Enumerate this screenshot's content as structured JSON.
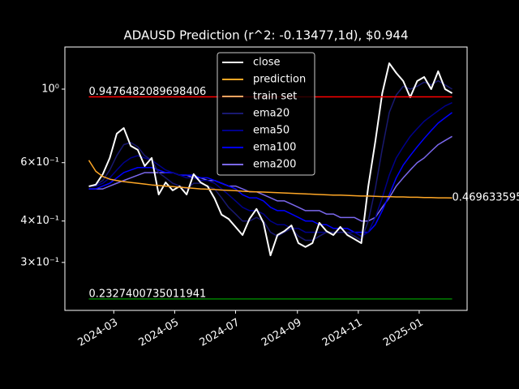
{
  "chart_data": {
    "type": "line",
    "title": "ADAUSD Prediction (r^2: -0.13477,1d), $0.944",
    "log_scale": true,
    "legend": "upper center",
    "xlim": [
      "2024-01-12",
      "2025-02-18"
    ],
    "xticks": [
      {
        "value": "2024-03-01",
        "label": "2024-03"
      },
      {
        "value": "2024-05-01",
        "label": "2024-05"
      },
      {
        "value": "2024-07-01",
        "label": "2024-07"
      },
      {
        "value": "2024-09-01",
        "label": "2024-09"
      },
      {
        "value": "2024-11-01",
        "label": "2024-11"
      },
      {
        "value": "2025-01-01",
        "label": "2025-01"
      }
    ],
    "ylim": [
      0.215,
      1.34
    ],
    "yticks": [
      {
        "value": 0.3,
        "label": "3×10⁻¹"
      },
      {
        "value": 0.4,
        "label": "4×10⁻¹"
      },
      {
        "value": 0.6,
        "label": "6×10⁻¹"
      },
      {
        "value": 1,
        "label": "10⁰"
      }
    ],
    "x": [
      "2024-02-05",
      "2024-02-12",
      "2024-02-19",
      "2024-02-26",
      "2024-03-04",
      "2024-03-11",
      "2024-03-18",
      "2024-03-25",
      "2024-04-01",
      "2024-04-08",
      "2024-04-15",
      "2024-04-22",
      "2024-04-29",
      "2024-05-06",
      "2024-05-13",
      "2024-05-20",
      "2024-05-27",
      "2024-06-03",
      "2024-06-10",
      "2024-06-17",
      "2024-06-24",
      "2024-07-01",
      "2024-07-08",
      "2024-07-15",
      "2024-07-22",
      "2024-07-29",
      "2024-08-05",
      "2024-08-12",
      "2024-08-19",
      "2024-08-26",
      "2024-09-02",
      "2024-09-09",
      "2024-09-16",
      "2024-09-23",
      "2024-09-30",
      "2024-10-07",
      "2024-10-14",
      "2024-10-21",
      "2024-10-28",
      "2024-11-04",
      "2024-11-11",
      "2024-11-18",
      "2024-11-25",
      "2024-12-02",
      "2024-12-09",
      "2024-12-16",
      "2024-12-23",
      "2024-12-30",
      "2025-01-06",
      "2025-01-13",
      "2025-01-20",
      "2025-01-27",
      "2025-02-03"
    ],
    "series": [
      {
        "name": "close",
        "color": "#ffffff",
        "width": 2,
        "values": [
          0.509,
          0.515,
          0.554,
          0.62,
          0.734,
          0.763,
          0.674,
          0.656,
          0.586,
          0.62,
          0.481,
          0.523,
          0.495,
          0.509,
          0.481,
          0.554,
          0.523,
          0.509,
          0.468,
          0.418,
          0.406,
          0.384,
          0.363,
          0.406,
          0.435,
          0.395,
          0.315,
          0.363,
          0.373,
          0.388,
          0.343,
          0.334,
          0.343,
          0.395,
          0.373,
          0.363,
          0.384,
          0.363,
          0.353,
          0.343,
          0.509,
          0.694,
          0.972,
          1.197,
          1.119,
          1.058,
          0.945,
          1.058,
          1.088,
          1.0,
          1.132,
          1.0,
          0.972
        ]
      },
      {
        "name": "prediction",
        "color": "#ffa726",
        "width": 1.5,
        "values": [
          0.61,
          0.565,
          0.545,
          0.535,
          0.53,
          0.526,
          0.523,
          0.52,
          0.517,
          0.514,
          0.512,
          0.51,
          0.508,
          0.506,
          0.504,
          0.502,
          0.5,
          0.499,
          0.498,
          0.496,
          0.495,
          0.494,
          0.492,
          0.491,
          0.49,
          0.489,
          0.488,
          0.487,
          0.486,
          0.485,
          0.484,
          0.483,
          0.482,
          0.481,
          0.48,
          0.479,
          0.479,
          0.478,
          0.477,
          0.476,
          0.476,
          0.475,
          0.474,
          0.474,
          0.473,
          0.473,
          0.472,
          0.472,
          0.471,
          0.471,
          0.47,
          0.47,
          0.469633595
        ]
      },
      {
        "name": "train set",
        "color": "#f4a460",
        "width": 1.5,
        "values": [
          null,
          null,
          null,
          null,
          null,
          null,
          null,
          null,
          null,
          null,
          null,
          null,
          null,
          null,
          null,
          null,
          null,
          null,
          null,
          null,
          null,
          null,
          null,
          null,
          null,
          null,
          null,
          null,
          null,
          null,
          null,
          null,
          null,
          null,
          null,
          null,
          null,
          null,
          null,
          null,
          null,
          null,
          null,
          null,
          null,
          null,
          null,
          null,
          null,
          null,
          null,
          null,
          null
        ]
      },
      {
        "name": "ema20",
        "color": "#191970",
        "width": 1.5,
        "values": [
          0.51,
          0.515,
          0.53,
          0.57,
          0.63,
          0.68,
          0.69,
          0.67,
          0.63,
          0.61,
          0.56,
          0.54,
          0.52,
          0.51,
          0.5,
          0.52,
          0.52,
          0.51,
          0.5,
          0.47,
          0.44,
          0.42,
          0.4,
          0.4,
          0.41,
          0.4,
          0.37,
          0.36,
          0.37,
          0.38,
          0.36,
          0.35,
          0.35,
          0.36,
          0.37,
          0.37,
          0.37,
          0.37,
          0.36,
          0.35,
          0.4,
          0.5,
          0.66,
          0.85,
          0.96,
          1.02,
          1.0,
          1.02,
          1.05,
          1.03,
          1.06,
          1.03,
          1.0
        ]
      },
      {
        "name": "ema50",
        "color": "#00008b",
        "width": 1.5,
        "values": [
          0.51,
          0.51,
          0.52,
          0.54,
          0.57,
          0.6,
          0.62,
          0.63,
          0.62,
          0.61,
          0.59,
          0.57,
          0.56,
          0.55,
          0.54,
          0.54,
          0.53,
          0.53,
          0.52,
          0.5,
          0.48,
          0.46,
          0.44,
          0.43,
          0.43,
          0.42,
          0.4,
          0.39,
          0.39,
          0.38,
          0.38,
          0.37,
          0.37,
          0.37,
          0.37,
          0.37,
          0.37,
          0.37,
          0.37,
          0.36,
          0.37,
          0.41,
          0.47,
          0.55,
          0.62,
          0.67,
          0.72,
          0.76,
          0.8,
          0.83,
          0.86,
          0.89,
          0.91
        ]
      },
      {
        "name": "ema100",
        "color": "#0000ff",
        "width": 1.5,
        "values": [
          0.5,
          0.5,
          0.51,
          0.52,
          0.54,
          0.56,
          0.57,
          0.58,
          0.58,
          0.58,
          0.57,
          0.56,
          0.56,
          0.55,
          0.55,
          0.55,
          0.54,
          0.54,
          0.53,
          0.52,
          0.51,
          0.5,
          0.48,
          0.47,
          0.47,
          0.46,
          0.44,
          0.43,
          0.43,
          0.42,
          0.41,
          0.4,
          0.4,
          0.39,
          0.39,
          0.38,
          0.38,
          0.38,
          0.37,
          0.37,
          0.37,
          0.39,
          0.43,
          0.48,
          0.54,
          0.59,
          0.63,
          0.67,
          0.71,
          0.75,
          0.79,
          0.82,
          0.85
        ]
      },
      {
        "name": "ema200",
        "color": "#7b68ee",
        "width": 1.5,
        "values": [
          0.5,
          0.5,
          0.5,
          0.51,
          0.52,
          0.53,
          0.54,
          0.55,
          0.56,
          0.56,
          0.56,
          0.56,
          0.56,
          0.55,
          0.55,
          0.54,
          0.54,
          0.53,
          0.53,
          0.52,
          0.51,
          0.51,
          0.5,
          0.49,
          0.49,
          0.48,
          0.47,
          0.46,
          0.46,
          0.45,
          0.44,
          0.43,
          0.43,
          0.43,
          0.42,
          0.42,
          0.41,
          0.41,
          0.41,
          0.4,
          0.4,
          0.41,
          0.44,
          0.47,
          0.51,
          0.54,
          0.57,
          0.6,
          0.62,
          0.65,
          0.68,
          0.7,
          0.72
        ]
      }
    ],
    "hlines": [
      {
        "value": 0.9476482089698406,
        "color": "#ff0000"
      },
      {
        "value": 0.2327400735011941,
        "color": "#008000"
      }
    ]
  }
}
